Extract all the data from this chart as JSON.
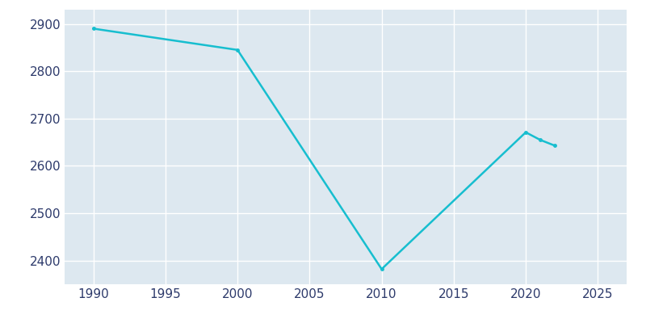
{
  "years": [
    1990,
    2000,
    2010,
    2020,
    2021,
    2022
  ],
  "population": [
    2890,
    2845,
    2382,
    2671,
    2655,
    2643
  ],
  "line_color": "#17becf",
  "plot_bg_color": "#dde8f0",
  "fig_bg_color": "#ffffff",
  "grid_color": "#ffffff",
  "text_color": "#2d3a6b",
  "ylim": [
    2350,
    2930
  ],
  "xlim": [
    1988,
    2027
  ],
  "xticks": [
    1990,
    1995,
    2000,
    2005,
    2010,
    2015,
    2020,
    2025
  ],
  "yticks": [
    2400,
    2500,
    2600,
    2700,
    2800,
    2900
  ],
  "linewidth": 1.8,
  "tick_labelsize": 11
}
